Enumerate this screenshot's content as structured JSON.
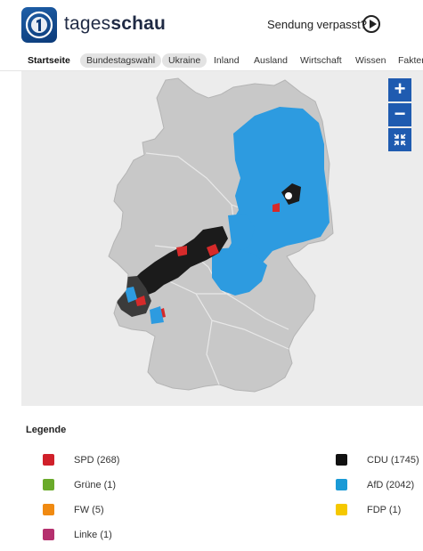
{
  "header": {
    "logo_text_light": "tages",
    "logo_text_bold": "schau",
    "missed_label": "Sendung verpasst?"
  },
  "nav": {
    "items": [
      {
        "label": "Startseite",
        "style": "active"
      },
      {
        "label": "Bundestagswahl",
        "style": "pill"
      },
      {
        "label": "Ukraine",
        "style": "pill"
      },
      {
        "label": "Inland",
        "style": "plain"
      },
      {
        "label": "Ausland",
        "style": "plain"
      },
      {
        "label": "Wirtschaft",
        "style": "plain"
      },
      {
        "label": "Wissen",
        "style": "plain"
      },
      {
        "label": "Fakter",
        "style": "plain"
      }
    ]
  },
  "map": {
    "controls": {
      "zoom_in": "+",
      "zoom_out": "−"
    },
    "colors": {
      "land": "#c8c8c8",
      "background": "#ececec",
      "afd": "#2d9be0",
      "cdu": "#1b1b1b",
      "spd": "#d62a2a"
    }
  },
  "legend": {
    "title": "Legende",
    "items": [
      {
        "label": "SPD (268)",
        "color": "#d0202a"
      },
      {
        "label": "Grüne (1)",
        "color": "#6aaa2a"
      },
      {
        "label": "FW (5)",
        "color": "#f08a12"
      },
      {
        "label": "Linke (1)",
        "color": "#b5306e"
      },
      {
        "label": "CDU (1745)",
        "color": "#111111"
      },
      {
        "label": "AfD (2042)",
        "color": "#1a9ad6"
      },
      {
        "label": "FDP (1)",
        "color": "#f5c800"
      }
    ]
  }
}
